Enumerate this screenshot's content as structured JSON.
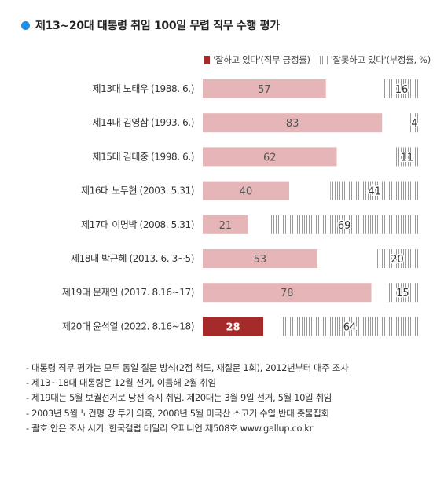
{
  "title": "제13~20대 대통령 취임 100일 무렵 직무 수행 평가",
  "legend": {
    "positive": "'잘하고 있다'(직무 긍정률)",
    "negative": "'잘못하고 있다'(부정률, %)"
  },
  "colors": {
    "title_dot": "#1e90e6",
    "positive_bar": "#e5b5b7",
    "positive_highlight": "#a52a2a",
    "negative_hatch": "#9a9a9a"
  },
  "chart_data": {
    "type": "bar",
    "orientation": "horizontal",
    "stacked": true,
    "categories": [
      "제13대 노태우 (1988. 6.)",
      "제14대 김영삼 (1993. 6.)",
      "제15대 김대중 (1998. 6.)",
      "제16대 노무현 (2003. 5.31)",
      "제17대 이명박 (2008. 5.31)",
      "제18대 박근혜 (2013. 6. 3~5)",
      "제19대 문재인 (2017. 8.16~17)",
      "제20대 윤석열 (2022. 8.16~18)"
    ],
    "series": [
      {
        "name": "'잘하고 있다'(직무 긍정률)",
        "values": [
          57,
          83,
          62,
          40,
          21,
          53,
          78,
          28
        ]
      },
      {
        "name": "'잘못하고 있다'(부정률, %)",
        "values": [
          16,
          4,
          11,
          41,
          69,
          20,
          15,
          64
        ]
      }
    ],
    "highlight_category_index": 7,
    "xlim": [
      0,
      100
    ]
  },
  "notes": [
    "- 대통령 직무 평가는 모두 동일 질문 방식(2점 척도, 재질문 1회), 2012년부터 매주 조사",
    "- 제13~18대 대통령은 12월 선거, 이듬해 2월 취임",
    "- 제19대는 5월 보궐선거로 당선 즉시 취임. 제20대는 3월 9일 선거, 5월 10일 취임",
    "- 2003년 5월 노건평 땅 투기 의혹, 2008년 5월 미국산 소고기 수입 반대 촛불집회",
    "- 괄호 안은 조사 시기. 한국갤럽 데일리 오피니언 제508호 www.gallup.co.kr"
  ]
}
